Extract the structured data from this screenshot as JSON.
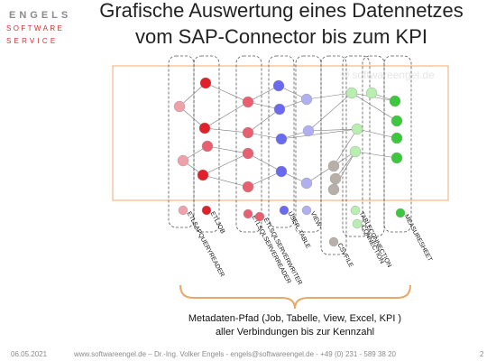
{
  "logo": {
    "line1": "ENGELS",
    "line2": "SOFTWARE",
    "line3": "SERVICE"
  },
  "title": {
    "line1": "Grafische Auswertung eines Datennetzes",
    "line2": "vom SAP-Connector bis zum KPI"
  },
  "watermark": "© softwareengel.de",
  "legend": {
    "items": [
      {
        "label": "ETLSAPQUERYREADER"
      },
      {
        "label": "ETLJOB"
      },
      {
        "label": "ETLSQLSERVERREADER"
      },
      {
        "label": "ETLSQLSERVERWRITER"
      },
      {
        "label": "USER_TABLE"
      },
      {
        "label": "VIEW"
      },
      {
        "label": "CSVFILE"
      },
      {
        "label": "TABLECONNECTION"
      },
      {
        "label": "CONNECTION"
      },
      {
        "label": "MEASURESHEET"
      }
    ]
  },
  "caption": {
    "line1": "Metadaten-Pfad (Job, Tabelle, View, Excel, KPI )",
    "line2": "aller Verbindungen bis zur Kennzahl"
  },
  "footer": {
    "date": "06.05.2021",
    "text": "www.softwareengel.de – Dr.-Ing. Volker Engels - engels@softwareengel.de - +49 (0) 231 - 589 38 20",
    "page": "2"
  }
}
